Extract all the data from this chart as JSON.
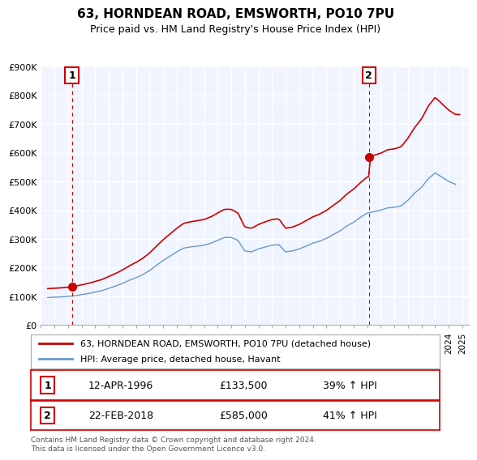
{
  "title": "63, HORNDEAN ROAD, EMSWORTH, PO10 7PU",
  "subtitle": "Price paid vs. HM Land Registry's House Price Index (HPI)",
  "legend_line1": "63, HORNDEAN ROAD, EMSWORTH, PO10 7PU (detached house)",
  "legend_line2": "HPI: Average price, detached house, Havant",
  "sale1_label": "1",
  "sale1_date": "12-APR-1996",
  "sale1_price": "£133,500",
  "sale1_hpi": "39% ↑ HPI",
  "sale1_year": 1996.28,
  "sale1_value": 133500,
  "sale2_label": "2",
  "sale2_date": "22-FEB-2018",
  "sale2_price": "£585,000",
  "sale2_hpi": "41% ↑ HPI",
  "sale2_year": 2018.13,
  "sale2_value": 585000,
  "ylabel": "",
  "ylim": [
    0,
    900000
  ],
  "yticks": [
    0,
    100000,
    200000,
    300000,
    400000,
    500000,
    600000,
    700000,
    800000,
    900000
  ],
  "ytick_labels": [
    "£0",
    "£100K",
    "£200K",
    "£300K",
    "£400K",
    "£500K",
    "£600K",
    "£700K",
    "£800K",
    "£900K"
  ],
  "xlim": [
    1994,
    2025.5
  ],
  "xticks": [
    1994,
    1995,
    1996,
    1997,
    1998,
    1999,
    2000,
    2001,
    2002,
    2003,
    2004,
    2005,
    2006,
    2007,
    2008,
    2009,
    2010,
    2011,
    2012,
    2013,
    2014,
    2015,
    2016,
    2017,
    2018,
    2019,
    2020,
    2021,
    2022,
    2023,
    2024,
    2025
  ],
  "property_color": "#cc0000",
  "hpi_color": "#6699cc",
  "marker_color": "#cc0000",
  "vline_color": "#cc0000",
  "background_color": "#f0f4ff",
  "plot_bg": "#f0f4ff",
  "grid_color": "#ffffff",
  "annotation_box_color": "#cc0000",
  "footer": "Contains HM Land Registry data © Crown copyright and database right 2024.\nThis data is licensed under the Open Government Licence v3.0."
}
